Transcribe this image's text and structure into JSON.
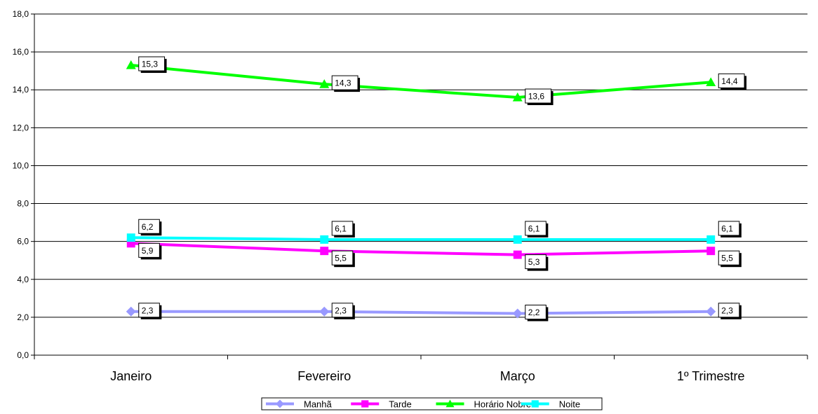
{
  "chart_data": {
    "type": "line",
    "categories": [
      "Janeiro",
      "Fevereiro",
      "Março",
      "1º Trimestre"
    ],
    "series": [
      {
        "name": "Manhã",
        "values": [
          2.3,
          2.3,
          2.2,
          2.3
        ],
        "labels": [
          "2,3",
          "2,3",
          "2,2",
          "2,3"
        ],
        "color": "#9999ff",
        "marker": "diamond"
      },
      {
        "name": "Tarde",
        "values": [
          5.9,
          5.5,
          5.3,
          5.5
        ],
        "labels": [
          "5,9",
          "5,5",
          "5,3",
          "5,5"
        ],
        "color": "#ff00ff",
        "marker": "square"
      },
      {
        "name": "Horário Nobre",
        "values": [
          15.3,
          14.3,
          13.6,
          14.4
        ],
        "labels": [
          "15,3",
          "14,3",
          "13,6",
          "14,4"
        ],
        "color": "#00ff00",
        "marker": "triangle"
      },
      {
        "name": "Noite",
        "values": [
          6.2,
          6.1,
          6.1,
          6.1
        ],
        "labels": [
          "6,2",
          "6,1",
          "6,1",
          "6,1"
        ],
        "color": "#00ffff",
        "marker": "square"
      }
    ],
    "yticks": [
      "0,0",
      "2,0",
      "4,0",
      "6,0",
      "8,0",
      "10,0",
      "12,0",
      "14,0",
      "16,0",
      "18,0"
    ],
    "ylim": [
      0,
      18
    ],
    "grid": true,
    "legend_position": "bottom",
    "title": "",
    "xlabel": "",
    "ylabel": ""
  }
}
